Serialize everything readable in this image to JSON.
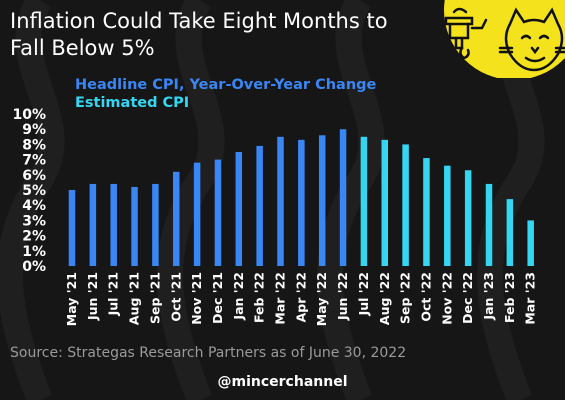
{
  "title": "Inflation Could Take Eight Months to Fall Below 5%",
  "source": "Source: Strategas Research Partners as of June 30, 2022",
  "handle": "@mincerchannel",
  "colors": {
    "background": "#161616",
    "headline": "#3a86f5",
    "estimated": "#35d6f2",
    "title_text": "#ffffff",
    "logo_yellow": "#f4e21d"
  },
  "chart_data": {
    "type": "bar",
    "title": "",
    "xlabel": "",
    "ylabel": "",
    "ylim": [
      0,
      10
    ],
    "yticks": [
      "0%",
      "1%",
      "2%",
      "3%",
      "4%",
      "5%",
      "6%",
      "7%",
      "8%",
      "9%",
      "10%"
    ],
    "legend_position": "top-left",
    "grid": false,
    "categories": [
      "May '21",
      "Jun '21",
      "Jul '21",
      "Aug '21",
      "Sep '21",
      "Oct '21",
      "Nov '21",
      "Dec '21",
      "Jan '22",
      "Feb '22",
      "Mar '22",
      "Apr '22",
      "May '22",
      "Jun '22",
      "Jul '22",
      "Aug '22",
      "Sep '22",
      "Oct '22",
      "Nov '22",
      "Dec '22",
      "Jan '23",
      "Feb '23",
      "Mar '23"
    ],
    "series": [
      {
        "name": "Headline CPI, Year-Over-Year Change",
        "color": "#3a86f5",
        "values": [
          5.0,
          5.4,
          5.4,
          5.2,
          5.4,
          6.2,
          6.8,
          7.0,
          7.5,
          7.9,
          8.5,
          8.3,
          8.6,
          9.0,
          null,
          null,
          null,
          null,
          null,
          null,
          null,
          null,
          null
        ]
      },
      {
        "name": "Estimated CPI",
        "color": "#35d6f2",
        "values": [
          null,
          null,
          null,
          null,
          null,
          null,
          null,
          null,
          null,
          null,
          null,
          null,
          null,
          null,
          8.5,
          8.3,
          8.0,
          7.1,
          6.6,
          6.3,
          5.4,
          4.4,
          3.0
        ]
      }
    ]
  }
}
